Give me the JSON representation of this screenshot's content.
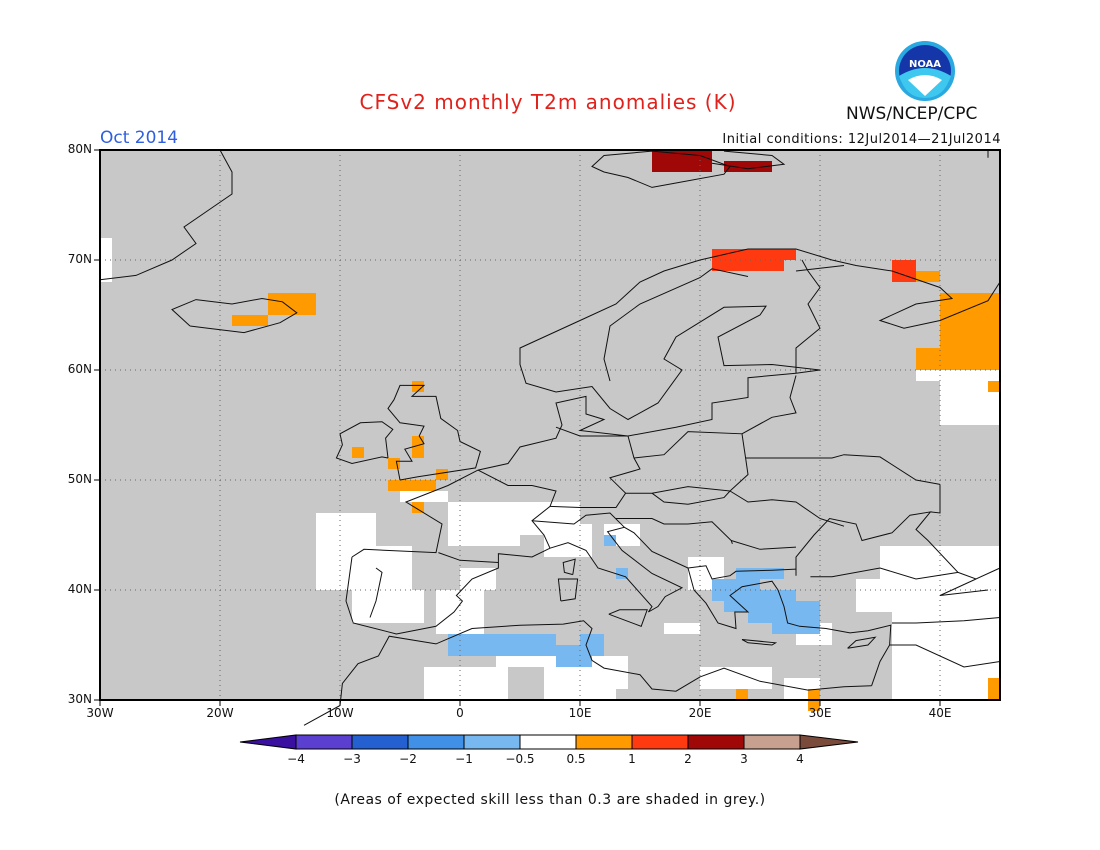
{
  "title": "CFSv2 monthly T2m anomalies (K)",
  "month": "Oct 2014",
  "initial_conditions": "Initial conditions: 12Jul2014—21Jul2014",
  "agency": "NWS/NCEP/CPC",
  "logo_text": "NOAA",
  "note": "(Areas of expected skill less than 0.3 are shaded in grey.)",
  "map": {
    "lon_range": [
      -30,
      45
    ],
    "lat_range": [
      30,
      80
    ],
    "lat_labels": [
      "30N",
      "40N",
      "50N",
      "60N",
      "70N",
      "80N"
    ],
    "lon_labels": [
      "30W",
      "20W",
      "10W",
      "0",
      "10E",
      "20E",
      "30E",
      "40E"
    ],
    "background_color": "#c8c8c8",
    "gridlines": "dotted"
  },
  "colorbar": {
    "tick_labels": [
      "−4",
      "−3",
      "−2",
      "−1",
      "−0.5",
      "0.5",
      "1",
      "2",
      "3",
      "4"
    ],
    "colors": [
      "#3a10a0",
      "#5a3fd0",
      "#2460d0",
      "#4090e8",
      "#78b8f0",
      "#ffffff",
      "#ff9a00",
      "#ff3a10",
      "#a00808",
      "#c8a090",
      "#7a4a3a"
    ]
  },
  "anomaly_categories": {
    "white": "#ffffff",
    "light_blue": "#78b8f0",
    "orange": "#ff9a00",
    "red": "#ff3a10",
    "dark_red": "#a00808"
  }
}
